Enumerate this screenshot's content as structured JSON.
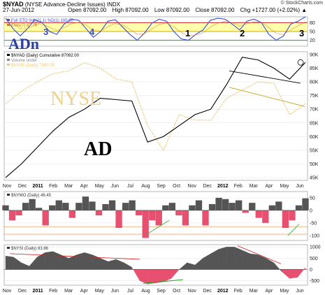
{
  "header": {
    "symbol": "$NYAD",
    "description": "(NYSE Advance-Decline Issues)",
    "exchange": "INDX",
    "credit": "© StockCharts.com",
    "date": "27-Jun-2012",
    "open": "Open 87092.00",
    "high": "High 87092.00",
    "low": "Low 87092.00",
    "close": "Close 87092.00",
    "chg": "Chg +1727.00 (+2.02%) ▲"
  },
  "colors": {
    "ad_line": "#000000",
    "nyse_line": "#e8c97a",
    "sto_k": "#3a4fd0",
    "ema": "#d07a2a",
    "pos_fill": "#555555",
    "neg_fill": "#e85070",
    "overbought": "#d02020",
    "oversold": "#20a020",
    "band": "#ffff88"
  },
  "annotations": {
    "adn": "ADn",
    "nyse": "NYSE",
    "ad": "AD",
    "wave_labels": [
      "3",
      "4",
      "1",
      "2",
      "3"
    ]
  },
  "chart_data": [
    {
      "type": "line",
      "panel": "Full Stochastic",
      "legend": [
        "Full STO %K(21,1) %D(1) 100.00",
        "EMA(7) 87.78"
      ],
      "ylim": [
        0,
        100
      ],
      "yticks": [
        "80",
        "50",
        "20"
      ],
      "levels": [
        80,
        50,
        20
      ],
      "series": [
        {
          "name": "Full STO %K(21,1)",
          "values": [
            95,
            60,
            35,
            60,
            90,
            80,
            50,
            40,
            75,
            92,
            88,
            60,
            30,
            50,
            85,
            90,
            65,
            40,
            20,
            45,
            78,
            92,
            85,
            50,
            25,
            20,
            40,
            55,
            88,
            95,
            92,
            75,
            55,
            85,
            92,
            80,
            40,
            20,
            35,
            75,
            85,
            100
          ]
        }
      ]
    },
    {
      "type": "line",
      "panel": "NYAD Price",
      "legend": [
        "$NYAD (Daily) Cumulative 87092.00",
        "Volume undef",
        "$NYSE (Daily) 7590.05"
      ],
      "ylim": [
        44000,
        91000
      ],
      "yticks": [
        "90K",
        "85K",
        "80K",
        "75K",
        "70K",
        "65K",
        "60K",
        "55K",
        "50K",
        "45K"
      ],
      "x": [
        "Nov",
        "Dec",
        "2011",
        "Feb",
        "Mar",
        "Apr",
        "May",
        "Jun",
        "Jul",
        "Aug",
        "Sep",
        "Oct",
        "Nov",
        "Dec",
        "2012",
        "Feb",
        "Mar",
        "Apr",
        "May",
        "Jun"
      ],
      "series": [
        {
          "name": "$NYAD (Daily) Cumulative",
          "values": [
            45000,
            50000,
            56000,
            62000,
            67000,
            70000,
            74000,
            73500,
            73000,
            58000,
            60000,
            64000,
            68000,
            70000,
            79000,
            89000,
            88000,
            85000,
            81000,
            87092
          ]
        },
        {
          "name": "$NYSE (Daily)",
          "values": [
            72000,
            76500,
            80000,
            83000,
            84000,
            87000,
            85000,
            81000,
            80000,
            64000,
            55000,
            68000,
            66000,
            66000,
            74000,
            77000,
            80000,
            79500,
            68000,
            72000
          ]
        }
      ]
    },
    {
      "type": "area",
      "panel": "NYMO",
      "legend": [
        "$NYMO (Daily) 48.45"
      ],
      "ylim": [
        -120,
        75
      ],
      "yticks": [
        "50",
        "0",
        "-50",
        "-100"
      ],
      "levels": [
        -65,
        -95
      ],
      "series": [
        {
          "name": "$NYMO (Daily)",
          "values": [
            20,
            -40,
            -20,
            30,
            45,
            10,
            -60,
            20,
            40,
            30,
            -30,
            30,
            55,
            35,
            -20,
            25,
            40,
            -70,
            30,
            40,
            -20,
            -110,
            -40,
            -60,
            20,
            30,
            -20,
            -60,
            20,
            40,
            -60,
            25,
            50,
            45,
            30,
            40,
            -10,
            30,
            -30,
            -50,
            20,
            35,
            -70,
            -40,
            20,
            48
          ]
        }
      ]
    },
    {
      "type": "area",
      "panel": "NYSI",
      "legend": [
        "$NYSI (Daily) 83.86"
      ],
      "ylim": [
        -700,
        1100
      ],
      "yticks": [
        "1000",
        "500",
        "0",
        "-500"
      ],
      "series": [
        {
          "name": "$NYSI (Daily)",
          "values": [
            600,
            550,
            300,
            150,
            550,
            750,
            800,
            650,
            500,
            650,
            750,
            650,
            500,
            350,
            450,
            300,
            100,
            -500,
            -650,
            -600,
            -550,
            -400,
            0,
            300,
            200,
            500,
            700,
            900,
            1000,
            1000,
            850,
            700,
            650,
            500,
            300,
            -100,
            -400,
            -350,
            84
          ]
        }
      ]
    }
  ]
}
